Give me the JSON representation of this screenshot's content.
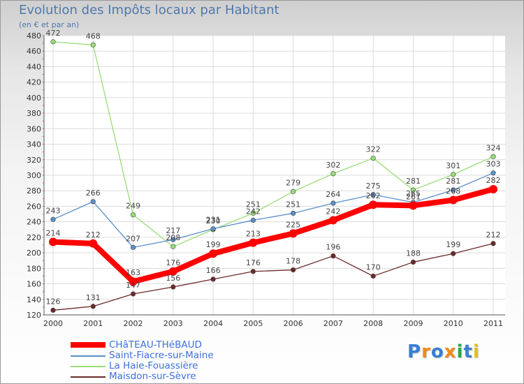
{
  "chart_data": {
    "type": "line",
    "title": "Evolution des Impôts locaux par Habitant",
    "subtitle": "(en € et par an)",
    "x": [
      "2000",
      "2001",
      "2002",
      "2003",
      "2004",
      "2005",
      "2006",
      "2007",
      "2008",
      "2009",
      "2010",
      "2011"
    ],
    "ylim": [
      120,
      480
    ],
    "yticks": [
      120,
      140,
      160,
      180,
      200,
      220,
      240,
      260,
      280,
      300,
      320,
      340,
      360,
      380,
      400,
      420,
      440,
      460,
      480
    ],
    "grid": true,
    "legend_position": "bottom-left",
    "series": [
      {
        "name": "Maisdon-sur-Sèvre",
        "color": "#6b2a2a",
        "values": [
          126,
          131,
          147,
          156,
          166,
          176,
          178,
          196,
          170,
          188,
          199,
          212
        ]
      },
      {
        "name": "La Haie-Fouassière",
        "color": "#99dd77",
        "values": [
          472,
          468,
          249,
          208,
          230,
          251,
          279,
          302,
          322,
          281,
          301,
          324
        ]
      },
      {
        "name": "Saint-Fiacre-sur-Maine",
        "color": "#5b8fc9",
        "values": [
          243,
          266,
          207,
          217,
          231,
          242,
          251,
          264,
          275,
          265,
          281,
          303
        ]
      },
      {
        "name": "CHâTEAU-THéBAUD",
        "color": "#ff0000",
        "values": [
          214,
          212,
          163,
          176,
          199,
          213,
          225,
          242,
          262,
          261,
          268,
          282
        ]
      }
    ],
    "data_labels": [
      {
        "series": "Maisdon-sur-Sèvre",
        "labels": [
          "126",
          "131",
          "147",
          "156",
          "166",
          "176",
          "178",
          "196",
          "170",
          "188",
          "199",
          "212"
        ]
      },
      {
        "series": "La Haie-Fouassière",
        "labels": [
          "472",
          "468",
          "249",
          "208",
          "230",
          "251",
          "279",
          "302",
          "322",
          "281",
          "301",
          "324"
        ]
      },
      {
        "series": "Saint-Fiacre-sur-Maine",
        "labels": [
          "243",
          "266",
          "207",
          "217",
          "231",
          "242",
          "251",
          "264",
          "275",
          "265",
          "281",
          "303"
        ]
      },
      {
        "series": "CHâTEAU-THéBAUD",
        "labels": [
          "214",
          "212",
          "163",
          "176",
          "199",
          "213",
          "225",
          "242",
          "262",
          "261",
          "268",
          "282"
        ]
      }
    ]
  },
  "legend": {
    "items": [
      {
        "name": "CHâTEAU-THéBAUD",
        "color": "#ff0000"
      },
      {
        "name": "Saint-Fiacre-sur-Maine",
        "color": "#5b8fc9"
      },
      {
        "name": "La Haie-Fouassière",
        "color": "#99dd77"
      },
      {
        "name": "Maisdon-sur-Sèvre",
        "color": "#6b2a2a"
      }
    ]
  },
  "logo": {
    "text": "Proxiti",
    "colors": [
      "#3a7fd1",
      "#f08a1a",
      "#3a7fd1",
      "#f08a1a",
      "#2fa64a",
      "#3a7fd1",
      "#e0c21a"
    ]
  }
}
